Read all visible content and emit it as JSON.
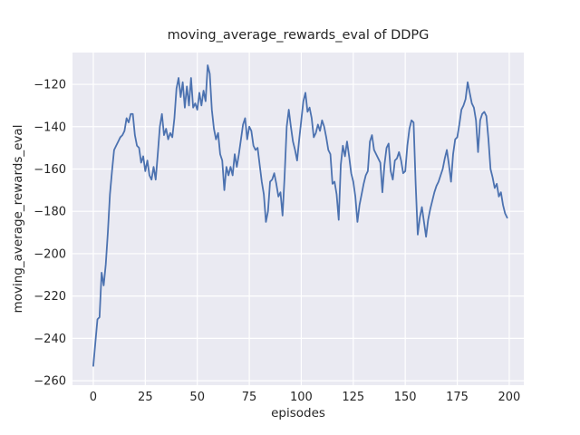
{
  "chart_data": {
    "type": "line",
    "title": "moving_average_rewards_eval of DDPG",
    "xlabel": "episodes",
    "ylabel": "moving_average_rewards_eval",
    "x_tick_values": [
      0,
      25,
      50,
      75,
      100,
      125,
      150,
      175,
      200
    ],
    "x_tick_labels": [
      "0",
      "25",
      "50",
      "75",
      "100",
      "125",
      "150",
      "175",
      "200"
    ],
    "y_tick_values": [
      -120,
      -140,
      -160,
      -180,
      -200,
      -220,
      -240,
      -260
    ],
    "y_tick_labels": [
      "−120",
      "−140",
      "−160",
      "−180",
      "−200",
      "−220",
      "−240",
      "−260"
    ],
    "xlim": [
      -10,
      207
    ],
    "ylim": [
      -262.1,
      -105
    ],
    "grid": true,
    "legend": "none",
    "line_color": "#4c72b0",
    "axes_background": "#eaeaf2",
    "grid_color": "#ffffff",
    "text_color": "#262626",
    "x_start": 0,
    "x_step": 1,
    "series_name": "moving_average_rewards_eval",
    "values": [
      -253,
      -242,
      -231,
      -230,
      -209,
      -215,
      -205,
      -190,
      -172,
      -161,
      -151,
      -149,
      -147,
      -145,
      -144,
      -142,
      -136,
      -138,
      -134,
      -134,
      -144,
      -149,
      -150,
      -157,
      -154,
      -161,
      -156,
      -163,
      -165,
      -159,
      -165,
      -153,
      -140,
      -134,
      -144,
      -141,
      -146,
      -143,
      -145,
      -136,
      -122,
      -117,
      -126,
      -119,
      -131,
      -121,
      -130,
      -117,
      -131,
      -129,
      -132,
      -124,
      -130,
      -123,
      -128,
      -111,
      -115,
      -132,
      -141,
      -146,
      -143,
      -153,
      -156,
      -170,
      -159,
      -163,
      -159,
      -163,
      -153,
      -159,
      -153,
      -146,
      -139,
      -136,
      -146,
      -140,
      -142,
      -149,
      -151,
      -150,
      -158,
      -166,
      -172,
      -185,
      -180,
      -166,
      -165,
      -162,
      -167,
      -173,
      -171,
      -182,
      -163,
      -140,
      -132,
      -140,
      -147,
      -151,
      -156,
      -146,
      -137,
      -128,
      -124,
      -133,
      -131,
      -136,
      -145,
      -143,
      -139,
      -142,
      -137,
      -140,
      -145,
      -151,
      -153,
      -167,
      -166,
      -172,
      -184,
      -158,
      -149,
      -154,
      -147,
      -154,
      -162,
      -166,
      -173,
      -185,
      -177,
      -172,
      -167,
      -163,
      -161,
      -147,
      -144,
      -151,
      -153,
      -155,
      -157,
      -171,
      -158,
      -150,
      -148,
      -161,
      -165,
      -156,
      -155,
      -152,
      -156,
      -162,
      -161,
      -149,
      -141,
      -137,
      -138,
      -167,
      -191,
      -183,
      -178,
      -185,
      -192,
      -184,
      -179,
      -175,
      -171,
      -168,
      -166,
      -163,
      -160,
      -155,
      -151,
      -158,
      -166,
      -153,
      -146,
      -145,
      -139,
      -132,
      -130,
      -127,
      -119,
      -124,
      -129,
      -131,
      -137,
      -152,
      -137,
      -134,
      -133,
      -135,
      -146,
      -160,
      -164,
      -169,
      -167,
      -173,
      -171,
      -177,
      -181,
      -183
    ]
  }
}
